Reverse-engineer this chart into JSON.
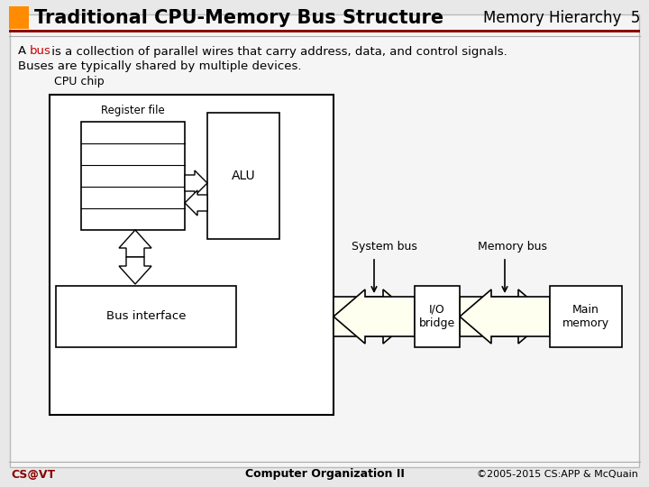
{
  "title": "Traditional CPU-Memory Bus Structure",
  "subtitle": "Memory Hierarchy  5",
  "bg_color": "#e8e8e8",
  "slide_bg": "#f5f5f5",
  "title_bar_color": "#FF8C00",
  "title_text_color": "#000000",
  "subtitle_text_color": "#000000",
  "text_line1_prefix": "A ",
  "text_line1_bus": "bus",
  "text_line1_bus_color": "#cc0000",
  "text_line1_suffix": " is a collection of parallel wires that carry address, data, and control signals.",
  "text_line2": "Buses are typically shared by multiple devices.",
  "footer_left": "CS@VT",
  "footer_center": "Computer Organization II",
  "footer_right": "©2005-2015 CS:APP & McQuain",
  "footer_color": "#8B0000",
  "cpu_chip_label": "CPU chip",
  "register_file_label": "Register file",
  "alu_label": "ALU",
  "bus_interface_label": "Bus interface",
  "io_bridge_label": "I/O\nbridge",
  "main_memory_label": "Main\nmemory",
  "system_bus_label": "System bus",
  "memory_bus_label": "Memory bus",
  "arrow_fill_color": "#fffff0",
  "box_fill_color": "#ffffff",
  "box_edge_color": "#000000"
}
